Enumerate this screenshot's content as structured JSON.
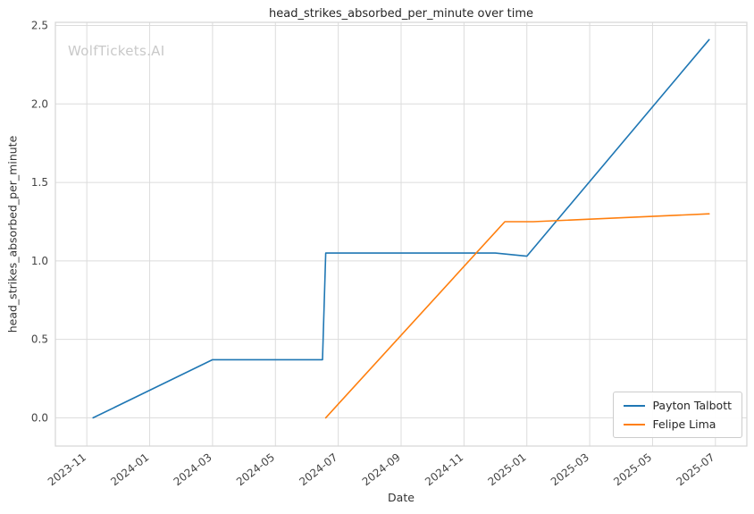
{
  "chart_data": {
    "type": "line",
    "title": "head_strikes_absorbed_per_minute over time",
    "xlabel": "Date",
    "ylabel": "head_strikes_absorbed_per_minute",
    "watermark": "WolfTickets.AI",
    "grid": true,
    "legend_position": "lower right",
    "x_axis": {
      "unit": "months since 2023-11",
      "tick_positions": [
        0,
        2,
        4,
        6,
        8,
        10,
        12,
        14,
        16,
        18,
        20
      ],
      "tick_labels": [
        "2023-11",
        "2024-01",
        "2024-03",
        "2024-05",
        "2024-07",
        "2024-09",
        "2024-11",
        "2025-01",
        "2025-03",
        "2025-05",
        "2025-07"
      ],
      "xlim": [
        -1.0,
        21.0
      ]
    },
    "y_axis": {
      "tick_positions": [
        0.0,
        0.5,
        1.0,
        1.5,
        2.0,
        2.5
      ],
      "tick_labels": [
        "0.0",
        "0.5",
        "1.0",
        "1.5",
        "2.0",
        "2.5"
      ],
      "ylim": [
        -0.18,
        2.52
      ]
    },
    "series": [
      {
        "name": "Payton Talbott",
        "color": "#1f77b4",
        "points": [
          [
            0.2,
            0.0
          ],
          [
            4.0,
            0.37
          ],
          [
            7.5,
            0.37
          ],
          [
            7.6,
            1.05
          ],
          [
            13.0,
            1.05
          ],
          [
            14.0,
            1.03
          ],
          [
            19.8,
            2.41
          ]
        ]
      },
      {
        "name": "Felipe Lima",
        "color": "#ff7f0e",
        "points": [
          [
            7.6,
            0.0
          ],
          [
            13.3,
            1.25
          ],
          [
            14.2,
            1.25
          ],
          [
            19.8,
            1.3
          ]
        ]
      }
    ]
  },
  "colors": {
    "background": "#ffffff",
    "grid": "#dcdcdc",
    "plot_border": "#d5d5d5",
    "tick_label": "#444444"
  }
}
